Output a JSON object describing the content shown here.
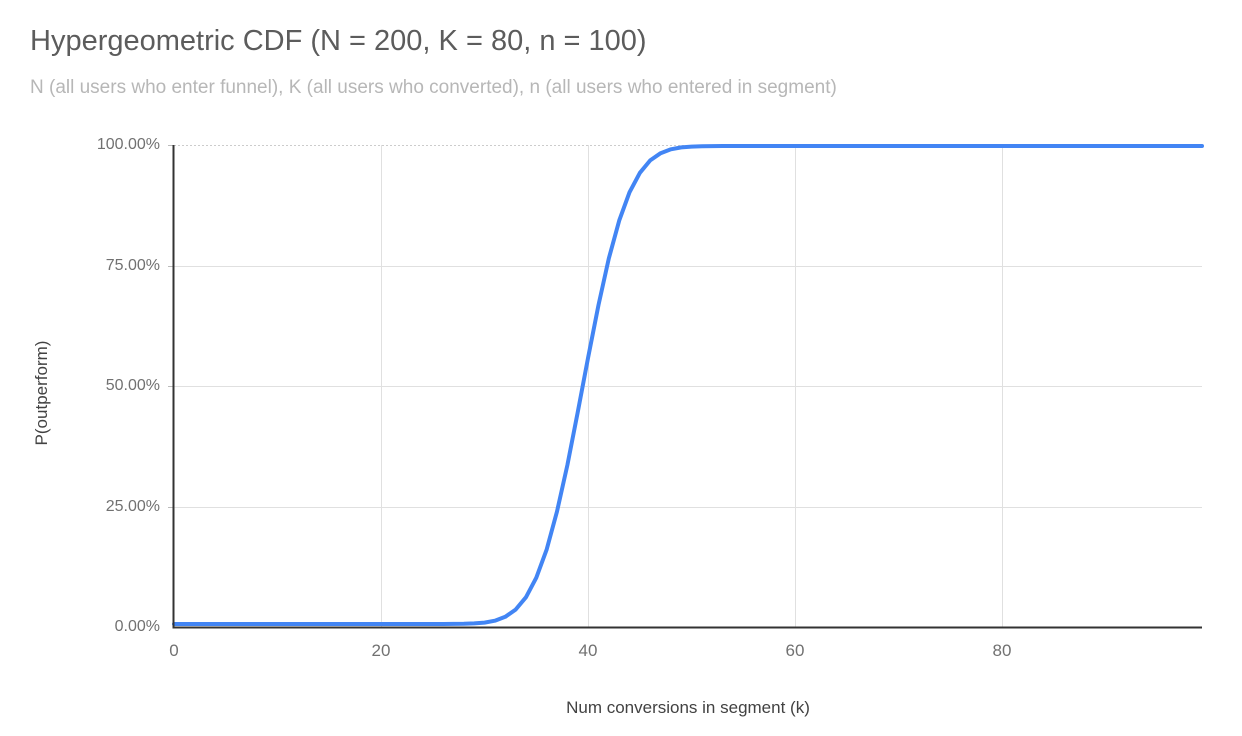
{
  "chart_data": {
    "type": "line",
    "title": "Hypergeometric CDF (N = 200, K = 80, n = 100)",
    "subtitle": "N (all users who enter funnel), K (all users who converted), n (all users who entered in segment)",
    "xlabel": "Num conversions in segment (k)",
    "ylabel": "P(outperform)",
    "xlim": [
      0,
      99.3
    ],
    "ylim": [
      0,
      1
    ],
    "x_ticks": [
      0,
      20,
      40,
      60,
      80
    ],
    "y_tick_values": [
      0,
      0.25,
      0.5,
      0.75,
      1
    ],
    "y_tick_labels": [
      "0.00%",
      "25.00%",
      "50.00%",
      "75.00%",
      "100.00%"
    ],
    "grid": true,
    "legend": "none",
    "series": [
      {
        "name": "P(outperform)",
        "color": "#4285f4",
        "x_start": 0,
        "x_step": 1,
        "y": [
          0,
          0,
          0,
          0,
          0,
          0,
          0,
          0,
          0,
          0,
          0,
          0,
          0,
          0,
          0,
          0,
          0,
          0,
          0,
          0,
          0,
          0,
          0,
          1e-06,
          3e-06,
          1.2e-05,
          4.3e-05,
          0.000141,
          0.000424,
          0.001169,
          0.002968,
          0.00695,
          0.015042,
          0.030142,
          0.056041,
          0.096888,
          0.156155,
          0.235303,
          0.332576,
          0.442649,
          0.557356,
          0.667429,
          0.764702,
          0.84385,
          0.903117,
          0.943964,
          0.969864,
          0.984964,
          0.993056,
          0.997038,
          0.998837,
          0.999582,
          0.999865,
          0.999963,
          0.999994,
          1,
          1,
          1,
          1,
          1,
          1,
          1,
          1,
          1,
          1,
          1,
          1,
          1,
          1,
          1,
          1,
          1,
          1,
          1,
          1,
          1,
          1,
          1,
          1,
          1,
          1,
          1,
          1,
          1,
          1,
          1,
          1,
          1,
          1,
          1,
          1,
          1,
          1,
          1,
          1,
          1,
          1,
          1,
          1,
          1
        ]
      }
    ]
  },
  "colors": {
    "line": "#4285f4",
    "grid": "#e0e0e0",
    "grid_dotted": "#cccccc",
    "axis": "#333333",
    "tick_mark": "#bbbbbb",
    "title": "#5c5c5c",
    "subtitle": "#b7b7b7",
    "tick_label": "#717171",
    "axis_title": "#424242",
    "background": "#ffffff"
  }
}
